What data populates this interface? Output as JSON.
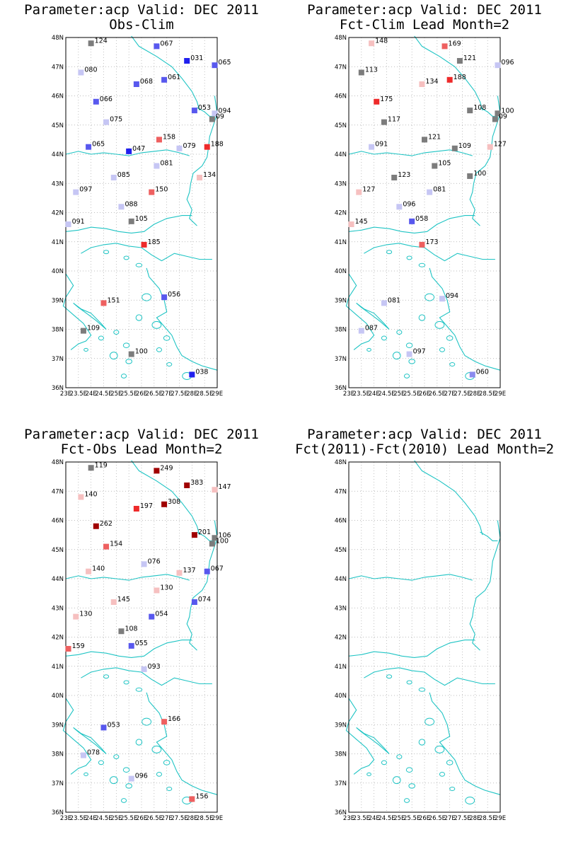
{
  "palette": {
    "coast": "#1fc4c4",
    "grid": "#a8a8a8",
    "frame": "#000000",
    "bin_colors": {
      "blue_deep": "#2020ee",
      "blue": "#5858ee",
      "blue_mid": "#8a8aee",
      "blue_light": "#c6c6f4",
      "gray": "#7c7c7c",
      "pink_light": "#f6c0c0",
      "pink": "#f09898",
      "red_mid": "#ee6060",
      "red": "#ee2a2a",
      "dark_red": "#a00000"
    }
  },
  "axes": {
    "lon_ticks": [
      "23E",
      "23.5E",
      "24E",
      "24.5E",
      "25E",
      "25.5E",
      "26E",
      "26.5E",
      "27E",
      "27.5E",
      "28E",
      "28.5E",
      "29E"
    ],
    "lat_ticks": [
      "36N",
      "37N",
      "38N",
      "39N",
      "40N",
      "41N",
      "42N",
      "43N",
      "44N",
      "45N",
      "46N",
      "47N",
      "48N"
    ],
    "lon_range": [
      23,
      29
    ],
    "lat_range": [
      36,
      48
    ]
  },
  "panels": [
    {
      "title_line1": "Parameter:acp Valid: DEC 2011",
      "title_line2": "Obs-Clim",
      "stations": [
        {
          "lon": 24.0,
          "lat": 47.8,
          "label": "124",
          "color": "gray"
        },
        {
          "lon": 26.6,
          "lat": 47.7,
          "label": "067",
          "color": "blue"
        },
        {
          "lon": 27.8,
          "lat": 47.2,
          "label": "031",
          "color": "blue_deep"
        },
        {
          "lon": 28.9,
          "lat": 47.05,
          "label": "065",
          "color": "blue"
        },
        {
          "lon": 23.6,
          "lat": 46.8,
          "label": "080",
          "color": "blue_light"
        },
        {
          "lon": 25.8,
          "lat": 46.4,
          "label": "068",
          "color": "blue"
        },
        {
          "lon": 26.9,
          "lat": 46.55,
          "label": "061",
          "color": "blue"
        },
        {
          "lon": 24.2,
          "lat": 45.8,
          "label": "066",
          "color": "blue"
        },
        {
          "lon": 28.1,
          "lat": 45.5,
          "label": "053",
          "color": "blue"
        },
        {
          "lon": 28.9,
          "lat": 45.4,
          "label": "094",
          "color": "blue_light"
        },
        {
          "lon": 28.8,
          "lat": 45.2,
          "label": "09",
          "color": "gray"
        },
        {
          "lon": 24.6,
          "lat": 45.1,
          "label": "075",
          "color": "blue_light"
        },
        {
          "lon": 26.7,
          "lat": 44.5,
          "label": "158",
          "color": "red_mid"
        },
        {
          "lon": 23.9,
          "lat": 44.25,
          "label": "065",
          "color": "blue"
        },
        {
          "lon": 25.5,
          "lat": 44.1,
          "label": "047",
          "color": "blue_deep"
        },
        {
          "lon": 27.5,
          "lat": 44.2,
          "label": "079",
          "color": "blue_light"
        },
        {
          "lon": 28.6,
          "lat": 44.25,
          "label": "188",
          "color": "red"
        },
        {
          "lon": 26.6,
          "lat": 43.6,
          "label": "081",
          "color": "blue_light"
        },
        {
          "lon": 24.9,
          "lat": 43.2,
          "label": "085",
          "color": "blue_light"
        },
        {
          "lon": 28.3,
          "lat": 43.2,
          "label": "134",
          "color": "pink_light"
        },
        {
          "lon": 23.4,
          "lat": 42.7,
          "label": "097",
          "color": "blue_light"
        },
        {
          "lon": 26.4,
          "lat": 42.7,
          "label": "150",
          "color": "red_mid"
        },
        {
          "lon": 25.2,
          "lat": 42.2,
          "label": "088",
          "color": "blue_light"
        },
        {
          "lon": 25.6,
          "lat": 41.7,
          "label": "105",
          "color": "gray"
        },
        {
          "lon": 23.1,
          "lat": 41.6,
          "label": "091",
          "color": "blue_light"
        },
        {
          "lon": 26.1,
          "lat": 40.9,
          "label": "185",
          "color": "red"
        },
        {
          "lon": 26.9,
          "lat": 39.1,
          "label": "056",
          "color": "blue"
        },
        {
          "lon": 24.5,
          "lat": 38.9,
          "label": "151",
          "color": "red_mid"
        },
        {
          "lon": 23.7,
          "lat": 37.95,
          "label": "109",
          "color": "gray"
        },
        {
          "lon": 25.6,
          "lat": 37.15,
          "label": "100",
          "color": "gray"
        },
        {
          "lon": 28.0,
          "lat": 36.45,
          "label": "038",
          "color": "blue_deep"
        }
      ]
    },
    {
      "title_line1": "Parameter:acp Valid: DEC 2011",
      "title_line2": "Fct-Clim Lead Month=2",
      "stations": [
        {
          "lon": 23.9,
          "lat": 47.8,
          "label": "148",
          "color": "pink_light"
        },
        {
          "lon": 26.8,
          "lat": 47.7,
          "label": "169",
          "color": "red_mid"
        },
        {
          "lon": 27.4,
          "lat": 47.2,
          "label": "121",
          "color": "gray"
        },
        {
          "lon": 28.9,
          "lat": 47.05,
          "label": "096",
          "color": "blue_light"
        },
        {
          "lon": 23.5,
          "lat": 46.8,
          "label": "113",
          "color": "gray"
        },
        {
          "lon": 25.9,
          "lat": 46.4,
          "label": "134",
          "color": "pink_light"
        },
        {
          "lon": 27.0,
          "lat": 46.55,
          "label": "188",
          "color": "red"
        },
        {
          "lon": 24.1,
          "lat": 45.8,
          "label": "175",
          "color": "red"
        },
        {
          "lon": 27.8,
          "lat": 45.5,
          "label": "108",
          "color": "gray"
        },
        {
          "lon": 28.9,
          "lat": 45.4,
          "label": "100",
          "color": "gray"
        },
        {
          "lon": 28.8,
          "lat": 45.2,
          "label": "09",
          "color": "gray"
        },
        {
          "lon": 24.4,
          "lat": 45.1,
          "label": "117",
          "color": "gray"
        },
        {
          "lon": 26.0,
          "lat": 44.5,
          "label": "121",
          "color": "gray"
        },
        {
          "lon": 23.9,
          "lat": 44.25,
          "label": "091",
          "color": "blue_light"
        },
        {
          "lon": 27.2,
          "lat": 44.2,
          "label": "109",
          "color": "gray"
        },
        {
          "lon": 28.6,
          "lat": 44.25,
          "label": "127",
          "color": "pink_light"
        },
        {
          "lon": 26.4,
          "lat": 43.6,
          "label": "105",
          "color": "gray"
        },
        {
          "lon": 24.8,
          "lat": 43.2,
          "label": "123",
          "color": "gray"
        },
        {
          "lon": 27.8,
          "lat": 43.25,
          "label": "100",
          "color": "gray"
        },
        {
          "lon": 23.4,
          "lat": 42.7,
          "label": "127",
          "color": "pink_light"
        },
        {
          "lon": 26.2,
          "lat": 42.7,
          "label": "081",
          "color": "blue_light"
        },
        {
          "lon": 25.0,
          "lat": 42.2,
          "label": "096",
          "color": "blue_light"
        },
        {
          "lon": 25.5,
          "lat": 41.7,
          "label": "058",
          "color": "blue"
        },
        {
          "lon": 23.1,
          "lat": 41.6,
          "label": "145",
          "color": "pink_light"
        },
        {
          "lon": 25.9,
          "lat": 40.9,
          "label": "173",
          "color": "red_mid"
        },
        {
          "lon": 26.7,
          "lat": 39.05,
          "label": "094",
          "color": "blue_light"
        },
        {
          "lon": 24.4,
          "lat": 38.9,
          "label": "081",
          "color": "blue_light"
        },
        {
          "lon": 23.5,
          "lat": 37.95,
          "label": "087",
          "color": "blue_light"
        },
        {
          "lon": 25.4,
          "lat": 37.15,
          "label": "097",
          "color": "blue_light"
        },
        {
          "lon": 27.9,
          "lat": 36.45,
          "label": "060",
          "color": "blue_mid"
        }
      ]
    },
    {
      "title_line1": "Parameter:acp Valid: DEC 2011",
      "title_line2": "Fct-Obs Lead Month=2",
      "stations": [
        {
          "lon": 24.0,
          "lat": 47.8,
          "label": "119",
          "color": "gray"
        },
        {
          "lon": 26.6,
          "lat": 47.7,
          "label": "249",
          "color": "dark_red"
        },
        {
          "lon": 27.8,
          "lat": 47.2,
          "label": "383",
          "color": "dark_red"
        },
        {
          "lon": 28.9,
          "lat": 47.05,
          "label": "147",
          "color": "pink_light"
        },
        {
          "lon": 23.6,
          "lat": 46.8,
          "label": "140",
          "color": "pink_light"
        },
        {
          "lon": 25.8,
          "lat": 46.4,
          "label": "197",
          "color": "red"
        },
        {
          "lon": 26.9,
          "lat": 46.55,
          "label": "308",
          "color": "dark_red"
        },
        {
          "lon": 24.2,
          "lat": 45.8,
          "label": "262",
          "color": "dark_red"
        },
        {
          "lon": 28.1,
          "lat": 45.5,
          "label": "201",
          "color": "dark_red"
        },
        {
          "lon": 28.9,
          "lat": 45.4,
          "label": "106",
          "color": "gray"
        },
        {
          "lon": 28.8,
          "lat": 45.2,
          "label": "100",
          "color": "gray"
        },
        {
          "lon": 24.6,
          "lat": 45.1,
          "label": "154",
          "color": "red_mid"
        },
        {
          "lon": 26.1,
          "lat": 44.5,
          "label": "076",
          "color": "blue_light"
        },
        {
          "lon": 23.9,
          "lat": 44.25,
          "label": "140",
          "color": "pink_light"
        },
        {
          "lon": 27.5,
          "lat": 44.2,
          "label": "137",
          "color": "pink_light"
        },
        {
          "lon": 28.6,
          "lat": 44.25,
          "label": "067",
          "color": "blue"
        },
        {
          "lon": 26.6,
          "lat": 43.6,
          "label": "130",
          "color": "pink_light"
        },
        {
          "lon": 24.9,
          "lat": 43.2,
          "label": "145",
          "color": "pink_light"
        },
        {
          "lon": 28.1,
          "lat": 43.2,
          "label": "074",
          "color": "blue"
        },
        {
          "lon": 23.4,
          "lat": 42.7,
          "label": "130",
          "color": "pink_light"
        },
        {
          "lon": 26.4,
          "lat": 42.7,
          "label": "054",
          "color": "blue"
        },
        {
          "lon": 25.2,
          "lat": 42.2,
          "label": "108",
          "color": "gray"
        },
        {
          "lon": 25.6,
          "lat": 41.7,
          "label": "055",
          "color": "blue"
        },
        {
          "lon": 23.1,
          "lat": 41.6,
          "label": "159",
          "color": "red_mid"
        },
        {
          "lon": 26.1,
          "lat": 40.9,
          "label": "093",
          "color": "blue_light"
        },
        {
          "lon": 26.9,
          "lat": 39.1,
          "label": "166",
          "color": "red_mid"
        },
        {
          "lon": 24.5,
          "lat": 38.9,
          "label": "053",
          "color": "blue"
        },
        {
          "lon": 23.7,
          "lat": 37.95,
          "label": "078",
          "color": "blue_light"
        },
        {
          "lon": 25.6,
          "lat": 37.15,
          "label": "096",
          "color": "blue_light"
        },
        {
          "lon": 28.0,
          "lat": 36.45,
          "label": "156",
          "color": "red_mid"
        }
      ]
    },
    {
      "title_line1": "Parameter:acp Valid: DEC 2011",
      "title_line2": "Fct(2011)-Fct(2010) Lead Month=2",
      "stations": []
    }
  ]
}
